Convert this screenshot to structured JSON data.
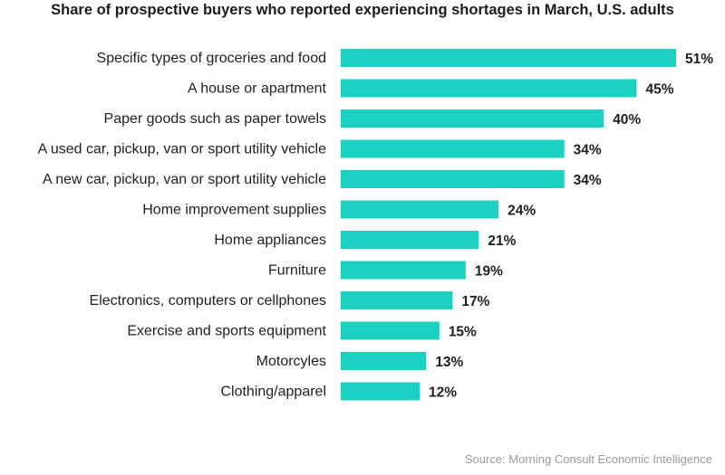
{
  "chart_data": {
    "type": "bar",
    "orientation": "horizontal",
    "title": "Share of prospective buyers who reported experiencing shortages in March, U.S. adults",
    "categories": [
      "Specific types of groceries and food",
      "A house or apartment",
      "Paper goods such as paper towels",
      "A used car, pickup, van or sport utility vehicle",
      "A new car, pickup, van or sport utility vehicle",
      "Home improvement supplies",
      "Home appliances",
      "Furniture",
      "Electronics, computers or cellphones",
      "Exercise and sports equipment",
      "Motorcyles",
      "Clothing/apparel"
    ],
    "values": [
      51,
      45,
      40,
      34,
      34,
      24,
      21,
      19,
      17,
      15,
      13,
      12
    ],
    "value_labels": [
      "51%",
      "45%",
      "40%",
      "34%",
      "34%",
      "24%",
      "21%",
      "19%",
      "17%",
      "15%",
      "13%",
      "12%"
    ],
    "unit": "%",
    "bar_color": "#1cd1c1",
    "xlabel": "",
    "ylabel": "",
    "grid": false,
    "legend": "none",
    "source": "Source: Morning Consult Economic Intelligence"
  }
}
